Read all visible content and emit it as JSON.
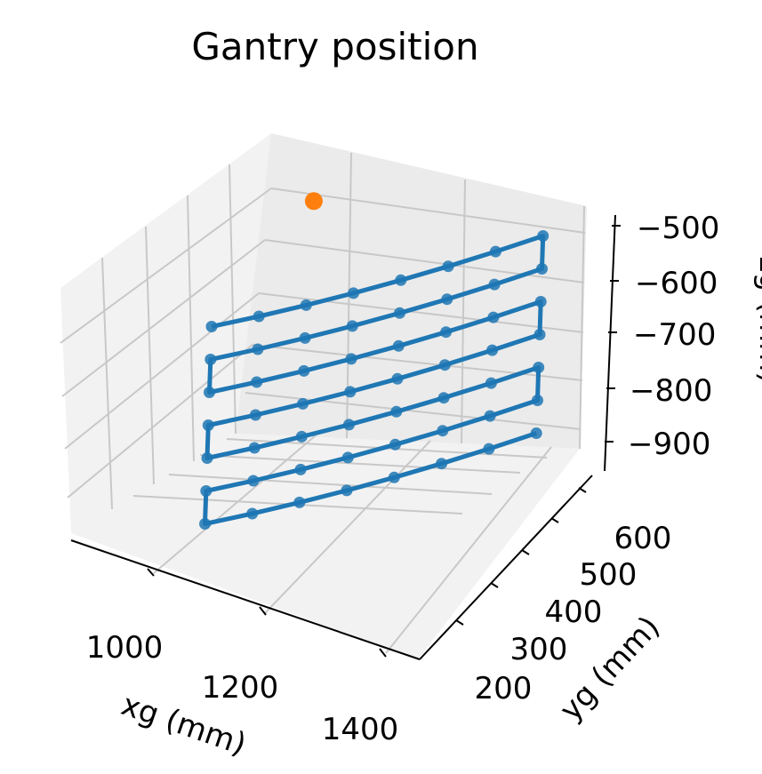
{
  "chart_data": {
    "type": "scatter",
    "projection": "3d",
    "title": "Gantry position",
    "xlabel": "xg (mm)",
    "ylabel": "yg (mm)",
    "zlabel": "zg (mm)",
    "x_ticks": [
      "1000",
      "1200",
      "1400"
    ],
    "y_ticks": [
      "200",
      "300",
      "400",
      "500",
      "600"
    ],
    "z_ticks": [
      "−500",
      "−600",
      "−700",
      "−800",
      "−900"
    ],
    "xlim": [
      850,
      1450
    ],
    "ylim": [
      150,
      650
    ],
    "zlim": [
      -960,
      -480
    ],
    "grid": true,
    "colors": {
      "path": "#1f77b4",
      "marker": "#ff7f0e"
    },
    "series": [
      {
        "kind": "line-with-markers",
        "color": "#1f77b4",
        "rows": [
          {
            "z": -540,
            "y_start": 200,
            "y_end": 585,
            "xs": [
              1050,
              1100,
              1150,
              1200,
              1250,
              1300,
              1350,
              1400
            ]
          },
          {
            "z": -600,
            "y_start": 200,
            "y_end": 585,
            "xs": [
              1050,
              1100,
              1150,
              1200,
              1250,
              1300,
              1350,
              1400
            ]
          },
          {
            "z": -660,
            "y_start": 200,
            "y_end": 585,
            "xs": [
              1050,
              1100,
              1150,
              1200,
              1250,
              1300,
              1350,
              1400
            ]
          },
          {
            "z": -720,
            "y_start": 200,
            "y_end": 585,
            "xs": [
              1050,
              1100,
              1150,
              1200,
              1250,
              1300,
              1350,
              1400
            ]
          },
          {
            "z": -780,
            "y_start": 200,
            "y_end": 585,
            "xs": [
              1050,
              1100,
              1150,
              1200,
              1250,
              1300,
              1350,
              1400
            ]
          },
          {
            "z": -840,
            "y_start": 200,
            "y_end": 585,
            "xs": [
              1050,
              1100,
              1150,
              1200,
              1250,
              1300,
              1350,
              1400
            ]
          },
          {
            "z": -900,
            "y_start": 200,
            "y_end": 585,
            "xs": [
              1050,
              1100,
              1150,
              1200,
              1250,
              1300,
              1350,
              1400
            ]
          }
        ]
      },
      {
        "kind": "point",
        "color": "#ff7f0e",
        "points": [
          {
            "x": 1000,
            "y": 600,
            "z": -600
          }
        ]
      }
    ]
  }
}
